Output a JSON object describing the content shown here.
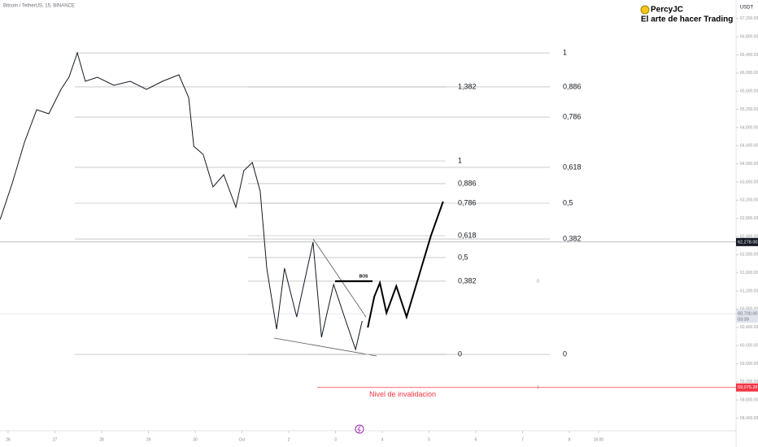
{
  "chart_data": {
    "type": "line",
    "title": "Bitcoin / TetherUS, 15, BINANCE",
    "currency": "USDT",
    "watermark": {
      "name": "PercyJC",
      "tagline": "El arte de hacer Trading"
    },
    "xlim": [
      -0.174,
      15.565
    ],
    "ylim": [
      58122,
      67609
    ],
    "xticks": [
      {
        "value": 0,
        "label": "26"
      },
      {
        "value": 1,
        "label": "27"
      },
      {
        "value": 2,
        "label": "28"
      },
      {
        "value": 3,
        "label": "29"
      },
      {
        "value": 4,
        "label": "30"
      },
      {
        "value": 5,
        "label": "Oct"
      },
      {
        "value": 6,
        "label": "2"
      },
      {
        "value": 7,
        "label": "3"
      },
      {
        "value": 8,
        "label": "4"
      },
      {
        "value": 9,
        "label": "5"
      },
      {
        "value": 10,
        "label": "6"
      },
      {
        "value": 11,
        "label": "7"
      },
      {
        "value": 12,
        "label": "8"
      },
      {
        "value": 12.625,
        "label": "15:00"
      }
    ],
    "yticks": [
      {
        "value": 58400,
        "label": "58,400.00"
      },
      {
        "value": 58800,
        "label": "58,800.00"
      },
      {
        "value": 59200,
        "label": "59,200.00"
      },
      {
        "value": 59600,
        "label": "59,600.00"
      },
      {
        "value": 60000,
        "label": "60,000.00"
      },
      {
        "value": 60400,
        "label": "60,400.00"
      },
      {
        "value": 60800,
        "label": "60,800.00"
      },
      {
        "value": 61200,
        "label": "61,200.00"
      },
      {
        "value": 61600,
        "label": "61,600.00"
      },
      {
        "value": 62000,
        "label": "62,000.00"
      },
      {
        "value": 62400,
        "label": "62,400.00"
      },
      {
        "value": 62800,
        "label": "62,800.00"
      },
      {
        "value": 63200,
        "label": "63,200.00"
      },
      {
        "value": 63600,
        "label": "63,600.00"
      },
      {
        "value": 64000,
        "label": "64,000.00"
      },
      {
        "value": 64400,
        "label": "64,400.00"
      },
      {
        "value": 64800,
        "label": "64,800.00"
      },
      {
        "value": 65200,
        "label": "65,200.00"
      },
      {
        "value": 65600,
        "label": "65,600.00"
      },
      {
        "value": 66000,
        "label": "66,000.00"
      },
      {
        "value": 66400,
        "label": "66,400.00"
      },
      {
        "value": 66800,
        "label": "66,800.00"
      },
      {
        "value": 67200,
        "label": "67,200.00"
      }
    ],
    "series": [
      {
        "color": "#131722",
        "width": 1,
        "x": [
          -0.17,
          0.09,
          0.35,
          0.61,
          0.87,
          1.13,
          1.3,
          1.48,
          1.65,
          1.91,
          2.26,
          2.61,
          2.96,
          3.3,
          3.65,
          3.86,
          3.97,
          4.17,
          4.38,
          4.61,
          4.87,
          5.04,
          5.22,
          5.39,
          5.53,
          5.74,
          5.91,
          6.17,
          6.52,
          6.7,
          6.96,
          7.22,
          7.43,
          7.57
        ],
        "values": [
          62776,
          63582,
          64476,
          65193,
          65103,
          65640,
          65909,
          66445,
          65819,
          65908,
          65730,
          65819,
          65640,
          65819,
          65962,
          65461,
          64387,
          64208,
          63492,
          63760,
          63045,
          63850,
          64029,
          63402,
          61702,
          60359,
          61702,
          60628,
          62275,
          60180,
          61344,
          60538,
          59912,
          60538
        ]
      },
      {
        "color": "#000000",
        "width": 2,
        "x": [
          7.69,
          7.83,
          7.95,
          8.09,
          8.3,
          8.52,
          8.78,
          9.04,
          9.3
        ],
        "values": [
          60395,
          61076,
          61380,
          60717,
          61308,
          60628,
          61523,
          62414,
          63170
        ]
      }
    ],
    "fib_a": [
      {
        "label": "1",
        "value": 66445
      },
      {
        "label": "0,886",
        "value": 65694
      },
      {
        "label": "0,786",
        "value": 65031
      },
      {
        "label": "0,618",
        "value": 63922
      },
      {
        "label": "0,5",
        "value": 63134
      },
      {
        "label": "0,382",
        "value": 62346
      },
      {
        "label": "0",
        "value": 59804
      }
    ],
    "fib_b": [
      {
        "label": "1,382",
        "value": 65694
      },
      {
        "label": "1",
        "value": 64065
      },
      {
        "label": "0,886",
        "value": 63564
      },
      {
        "label": "0,786",
        "value": 63134
      },
      {
        "label": "0,618",
        "value": 62418
      },
      {
        "label": "0,5",
        "value": 61935
      },
      {
        "label": "0,382",
        "value": 61416
      },
      {
        "label": "0",
        "value": 59804
      }
    ],
    "bos": {
      "label": "BOS",
      "value": 61416
    },
    "small_labels": [
      "0",
      "1"
    ],
    "price_markers": [
      {
        "value": 62278,
        "label": "62,278.00",
        "color": "#131722"
      },
      {
        "value": 60700,
        "label": "60,700.00",
        "sub": "03:39",
        "color": "#6a6d78"
      }
    ],
    "invalidation": {
      "label": "Nivel de invalidacion",
      "value": 59075.28,
      "price_label": "59,075.28",
      "color": "#f23645"
    }
  }
}
